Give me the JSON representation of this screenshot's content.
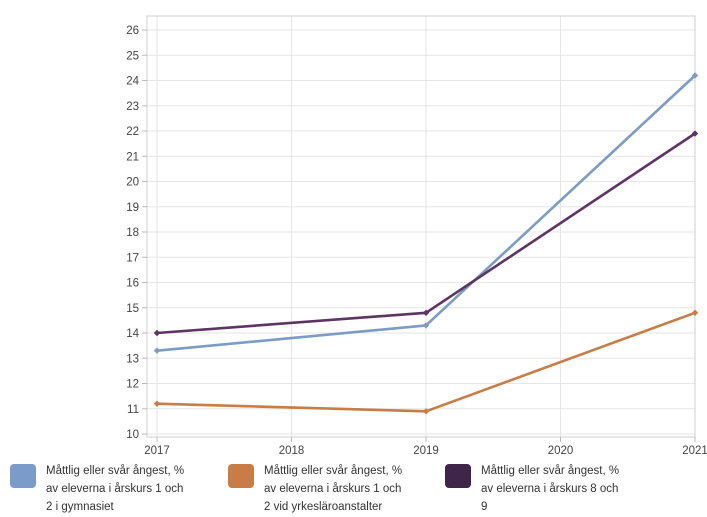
{
  "chart_data": {
    "type": "line",
    "x": [
      2017,
      2018,
      2019,
      2020,
      2021
    ],
    "ylim": [
      10,
      26
    ],
    "yticks": [
      10,
      11,
      12,
      13,
      14,
      15,
      16,
      17,
      18,
      19,
      20,
      21,
      22,
      23,
      24,
      25,
      26
    ],
    "xticks": [
      "2017",
      "2018",
      "2019",
      "2020",
      "2021"
    ],
    "grid": true,
    "legend_position": "bottom",
    "series": [
      {
        "name_lines": [
          "Måttlig eller svår ångest, %",
          "av eleverna i årskurs 1 och",
          "2 i gymnasiet"
        ],
        "color": "#7b9bc8",
        "points": [
          [
            2017,
            13.3
          ],
          [
            2019,
            14.3
          ],
          [
            2021,
            24.2
          ]
        ]
      },
      {
        "name_lines": [
          "Måttlig eller svår ångest, %",
          "av eleverna i årskurs 1 och",
          "2 vid yrkesläroanstalter"
        ],
        "color": "#c97c45",
        "points": [
          [
            2017,
            11.2
          ],
          [
            2019,
            10.9
          ],
          [
            2021,
            14.8
          ]
        ]
      },
      {
        "name_lines": [
          "Måttlig eller svår ångest, %",
          "av eleverna i årskurs 8 och",
          "9"
        ],
        "color": "#5c3562",
        "points": [
          [
            2017,
            14.0
          ],
          [
            2019,
            14.8
          ],
          [
            2021,
            21.9
          ]
        ]
      }
    ]
  }
}
